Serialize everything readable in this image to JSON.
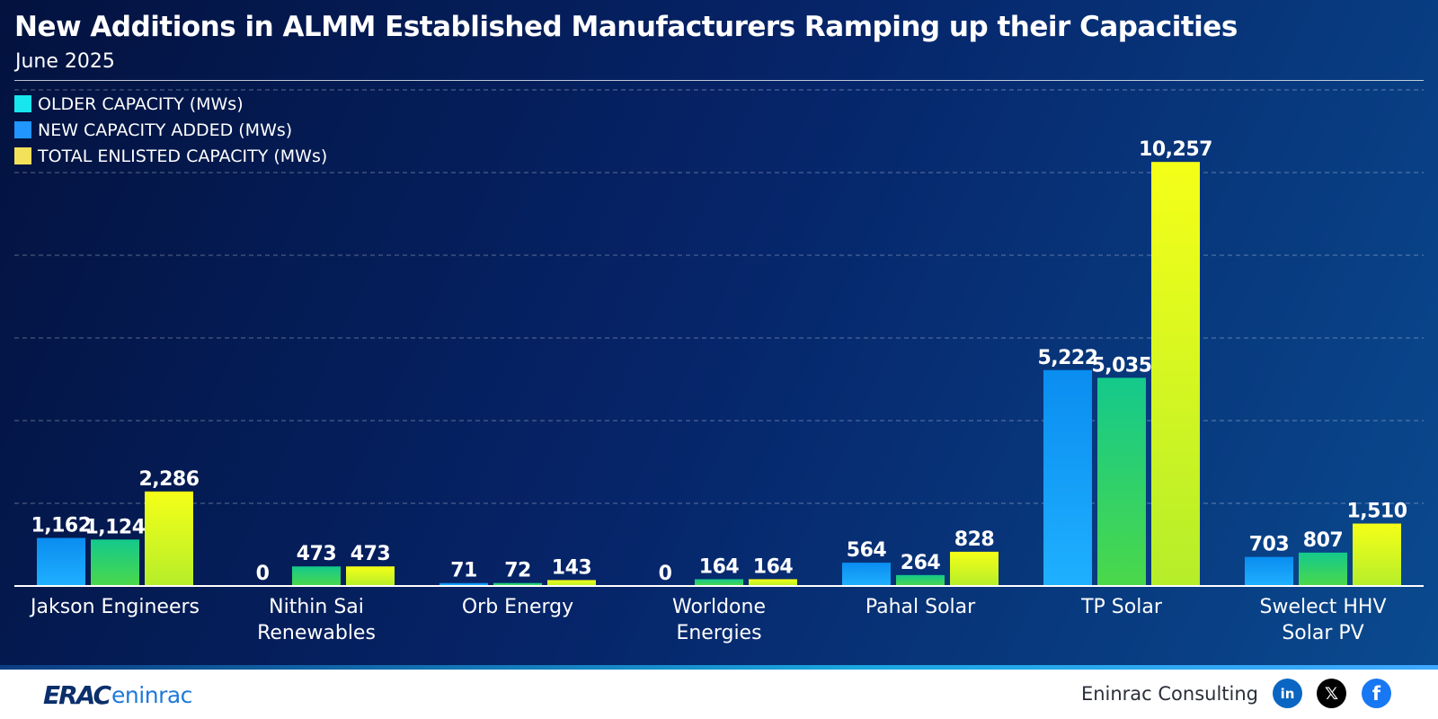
{
  "header": {
    "title": "New Additions in ALMM Established Manufacturers Ramping up their Capacities",
    "subtitle": "June 2025"
  },
  "legend": [
    {
      "label": "OLDER CAPACITY (MWs)",
      "color": "#18e6ee"
    },
    {
      "label": "NEW CAPACITY ADDED (MWs)",
      "color": "#2196ff"
    },
    {
      "label": "TOTAL ENLISTED CAPACITY (MWs)",
      "color": "#f4e15a"
    }
  ],
  "chart_data": {
    "type": "bar",
    "title": "New Additions in ALMM Established Manufacturers Ramping up their Capacities",
    "subtitle": "June 2025",
    "xlabel": "",
    "ylabel": "",
    "ylim": [
      0,
      12000
    ],
    "grid": true,
    "legend_position": "top-left",
    "categories": [
      [
        "Jakson Engineers"
      ],
      [
        "Nithin Sai",
        "Renewables"
      ],
      [
        "Orb Energy"
      ],
      [
        "Worldone",
        "Energies"
      ],
      [
        "Pahal Solar"
      ],
      [
        "TP Solar"
      ],
      [
        "Swelect HHV",
        "Solar PV"
      ]
    ],
    "series": [
      {
        "name": "OLDER CAPACITY (MWs)",
        "values": [
          1162,
          0,
          71,
          0,
          564,
          5222,
          703
        ],
        "labels": [
          "1,162",
          "0",
          "71",
          "0",
          "564",
          "5,222",
          "703"
        ],
        "color_top": "#0a8df0",
        "color_bottom": "#1fb0ff"
      },
      {
        "name": "NEW CAPACITY ADDED (MWs)",
        "values": [
          1124,
          473,
          72,
          164,
          264,
          5035,
          807
        ],
        "labels": [
          "1,124",
          "473",
          "72",
          "164",
          "264",
          "5,035",
          "807"
        ],
        "color_top": "#14c98c",
        "color_bottom": "#4bd84a"
      },
      {
        "name": "TOTAL ENLISTED CAPACITY (MWs)",
        "values": [
          2286,
          473,
          143,
          164,
          828,
          10257,
          1510
        ],
        "labels": [
          "2,286",
          "473",
          "143",
          "164",
          "828",
          "10,257",
          "1,510"
        ],
        "color_top": "#f5ff18",
        "color_bottom": "#b5ee2a"
      }
    ]
  },
  "footer": {
    "logo_mark": "ERAC",
    "logo_text": "eninrac",
    "brand": "Eninrac Consulting",
    "social": [
      {
        "name": "linkedin",
        "glyph": "in"
      },
      {
        "name": "x",
        "glyph": "𝕏"
      },
      {
        "name": "facebook",
        "glyph": "f"
      }
    ]
  }
}
